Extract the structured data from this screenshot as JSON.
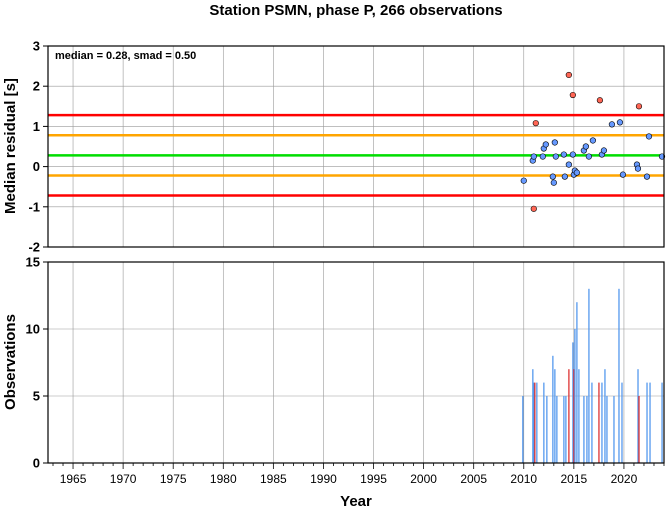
{
  "title": "Station PSMN, phase P, 266 observations",
  "chart_data": [
    {
      "type": "scatter",
      "ylabel": "Median residual [s]",
      "annotation": "median = 0.28, smad = 0.50",
      "xlim": [
        1962.5,
        2024
      ],
      "ylim": [
        -2,
        3
      ],
      "yticks": [
        -2,
        -1,
        0,
        1,
        2,
        3
      ],
      "grid": true,
      "reference_lines": [
        {
          "value": 1.28,
          "color": "#ff0000"
        },
        {
          "value": 0.78,
          "color": "#ffa500"
        },
        {
          "value": 0.28,
          "color": "#00dd00"
        },
        {
          "value": -0.22,
          "color": "#ffa500"
        },
        {
          "value": -0.72,
          "color": "#ff0000"
        }
      ],
      "series": [
        {
          "color": "#6699ff",
          "points": [
            {
              "x": 2010.0,
              "y": -0.35
            },
            {
              "x": 2010.9,
              "y": 0.15
            },
            {
              "x": 2011.0,
              "y": 0.25
            },
            {
              "x": 2011.9,
              "y": 0.25
            },
            {
              "x": 2012.0,
              "y": 0.45
            },
            {
              "x": 2012.2,
              "y": 0.55
            },
            {
              "x": 2012.9,
              "y": -0.25
            },
            {
              "x": 2013.0,
              "y": -0.4
            },
            {
              "x": 2013.1,
              "y": 0.6
            },
            {
              "x": 2013.2,
              "y": 0.25
            },
            {
              "x": 2014.0,
              "y": 0.3
            },
            {
              "x": 2014.1,
              "y": -0.25
            },
            {
              "x": 2014.5,
              "y": 0.05
            },
            {
              "x": 2014.9,
              "y": 0.3
            },
            {
              "x": 2015.0,
              "y": -0.2
            },
            {
              "x": 2015.1,
              "y": -0.1
            },
            {
              "x": 2015.3,
              "y": -0.15
            },
            {
              "x": 2016.0,
              "y": 0.4
            },
            {
              "x": 2016.2,
              "y": 0.5
            },
            {
              "x": 2016.5,
              "y": 0.25
            },
            {
              "x": 2016.9,
              "y": 0.65
            },
            {
              "x": 2017.8,
              "y": 0.3
            },
            {
              "x": 2018.0,
              "y": 0.4
            },
            {
              "x": 2018.8,
              "y": 1.05
            },
            {
              "x": 2019.6,
              "y": 1.1
            },
            {
              "x": 2019.9,
              "y": -0.2
            },
            {
              "x": 2021.3,
              "y": 0.05
            },
            {
              "x": 2021.4,
              "y": -0.05
            },
            {
              "x": 2022.3,
              "y": -0.25
            },
            {
              "x": 2022.5,
              "y": 0.75
            },
            {
              "x": 2023.8,
              "y": 0.25
            }
          ]
        },
        {
          "color": "#ff6655",
          "points": [
            {
              "x": 2011.0,
              "y": -1.05
            },
            {
              "x": 2011.2,
              "y": 1.08
            },
            {
              "x": 2014.5,
              "y": 2.28
            },
            {
              "x": 2014.9,
              "y": 1.78
            },
            {
              "x": 2017.6,
              "y": 1.65
            },
            {
              "x": 2021.5,
              "y": 1.5
            }
          ]
        }
      ]
    },
    {
      "type": "bar",
      "xlabel": "Year",
      "ylabel": "Observations",
      "xlim": [
        1962.5,
        2024
      ],
      "ylim": [
        0,
        15
      ],
      "yticks": [
        0,
        5,
        10,
        15
      ],
      "xticks": [
        1965,
        1970,
        1975,
        1980,
        1985,
        1990,
        1995,
        2000,
        2005,
        2010,
        2015,
        2020
      ],
      "grid": true,
      "bars": [
        {
          "x": 2009.9,
          "value": 5,
          "color": "#5599ee"
        },
        {
          "x": 2010.9,
          "value": 7,
          "color": "#5599ee"
        },
        {
          "x": 2011.0,
          "value": 6,
          "color": "#5599ee"
        },
        {
          "x": 2011.1,
          "value": 6,
          "color": "#dd3333"
        },
        {
          "x": 2011.3,
          "value": 6,
          "color": "#5599ee"
        },
        {
          "x": 2012.0,
          "value": 6,
          "color": "#5599ee"
        },
        {
          "x": 2012.3,
          "value": 5,
          "color": "#5599ee"
        },
        {
          "x": 2012.9,
          "value": 8,
          "color": "#5599ee"
        },
        {
          "x": 2013.1,
          "value": 7,
          "color": "#5599ee"
        },
        {
          "x": 2013.3,
          "value": 5,
          "color": "#5599ee"
        },
        {
          "x": 2014.0,
          "value": 5,
          "color": "#5599ee"
        },
        {
          "x": 2014.2,
          "value": 5,
          "color": "#5599ee"
        },
        {
          "x": 2014.5,
          "value": 7,
          "color": "#dd3333"
        },
        {
          "x": 2014.9,
          "value": 9,
          "color": "#5599ee"
        },
        {
          "x": 2015.0,
          "value": 7,
          "color": "#dd3333"
        },
        {
          "x": 2015.1,
          "value": 10,
          "color": "#5599ee"
        },
        {
          "x": 2015.3,
          "value": 12,
          "color": "#5599ee"
        },
        {
          "x": 2015.5,
          "value": 7,
          "color": "#5599ee"
        },
        {
          "x": 2016.0,
          "value": 5,
          "color": "#5599ee"
        },
        {
          "x": 2016.3,
          "value": 5,
          "color": "#5599ee"
        },
        {
          "x": 2016.5,
          "value": 13,
          "color": "#5599ee"
        },
        {
          "x": 2016.8,
          "value": 6,
          "color": "#5599ee"
        },
        {
          "x": 2017.5,
          "value": 6,
          "color": "#dd3333"
        },
        {
          "x": 2017.8,
          "value": 6,
          "color": "#5599ee"
        },
        {
          "x": 2018.1,
          "value": 7,
          "color": "#5599ee"
        },
        {
          "x": 2018.3,
          "value": 5,
          "color": "#5599ee"
        },
        {
          "x": 2019.0,
          "value": 5,
          "color": "#5599ee"
        },
        {
          "x": 2019.5,
          "value": 13,
          "color": "#5599ee"
        },
        {
          "x": 2019.8,
          "value": 6,
          "color": "#5599ee"
        },
        {
          "x": 2021.4,
          "value": 7,
          "color": "#5599ee"
        },
        {
          "x": 2021.5,
          "value": 5,
          "color": "#dd3333"
        },
        {
          "x": 2022.3,
          "value": 6,
          "color": "#5599ee"
        },
        {
          "x": 2022.6,
          "value": 6,
          "color": "#5599ee"
        },
        {
          "x": 2023.8,
          "value": 6,
          "color": "#5599ee"
        }
      ]
    }
  ]
}
